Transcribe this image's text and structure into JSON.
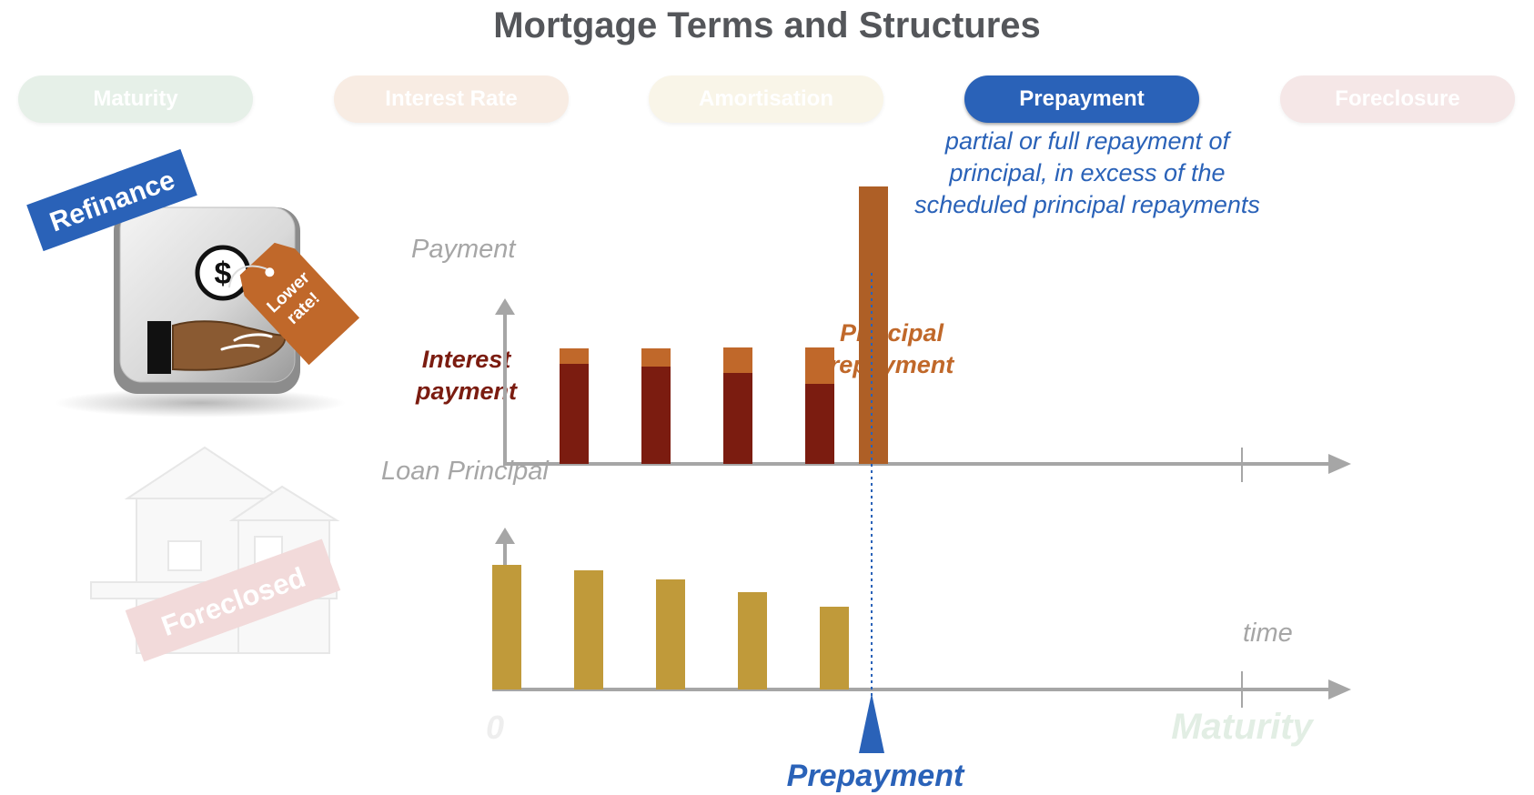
{
  "title": "Mortgage Terms and Structures",
  "tabs": [
    {
      "label": "Maturity",
      "color": "#e6f0e8",
      "active": false
    },
    {
      "label": "Interest Rate",
      "color": "#f8ece3",
      "active": false
    },
    {
      "label": "Amortisation",
      "color": "#f9f5e8",
      "active": false
    },
    {
      "label": "Prepayment",
      "color": "#2a62b8",
      "active": true
    },
    {
      "label": "Foreclosure",
      "color": "#f5e7e7",
      "active": false
    }
  ],
  "description": {
    "line1": "partial or full repayment of",
    "line2": "principal, in excess of the",
    "line3": "scheduled principal repayments"
  },
  "refinance_icon": {
    "banner": "Refinance",
    "tag_line1": "Lower",
    "tag_line2": "rate!",
    "dollar_symbol": "$",
    "icons": [
      "dollar-icon",
      "hand-icon",
      "price-tag-icon"
    ]
  },
  "foreclosed_icon": {
    "banner": "Foreclosed",
    "icons": [
      "house-icon"
    ]
  },
  "payment_chart": {
    "ylabel": "Payment",
    "interest_label_line1": "Interest",
    "interest_label_line2": "payment",
    "principal_label_line1": "Principal",
    "principal_label_line2": "repayment",
    "periods": [
      {
        "interest": 110,
        "principal": 17
      },
      {
        "interest": 107,
        "principal": 20
      },
      {
        "interest": 100,
        "principal": 28
      },
      {
        "interest": 88,
        "principal": 40
      }
    ],
    "prepayment_bar": 305
  },
  "principal_chart": {
    "ylabel": "Loan Principal",
    "xlabel": "time",
    "principal_values": [
      137,
      131,
      121,
      107,
      91
    ]
  },
  "x_axis": {
    "origin_label": "0",
    "maturity_label": "Maturity",
    "prepayment_label": "Prepayment"
  },
  "colors": {
    "interest": "#7b1c10",
    "principal": "#c0682a",
    "prepayment": "#ae5f26",
    "loan_principal": "#c09a3a",
    "axis": "#a6a6a6",
    "accent_blue": "#2a62b8",
    "maturity_faded": "#e2eee4"
  }
}
